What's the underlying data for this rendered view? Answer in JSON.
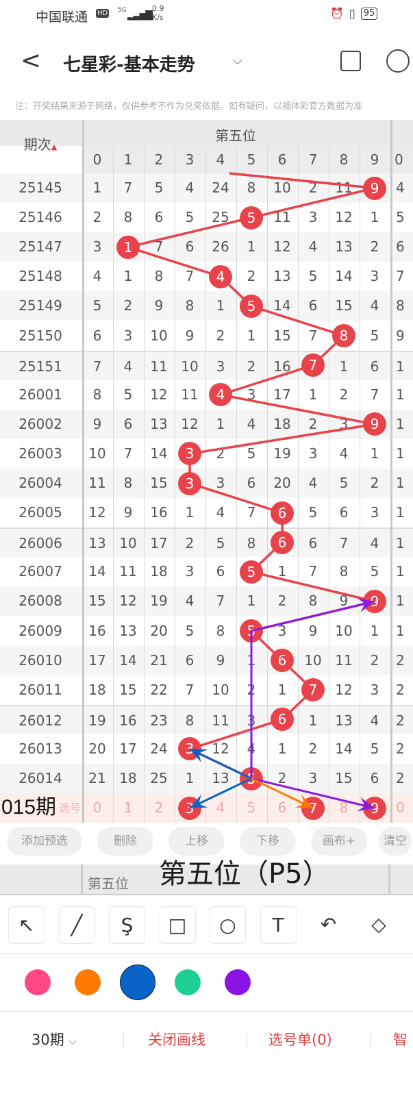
{
  "status_bar": {
    "carrier": "中国联通",
    "hd": "HD",
    "signal": "5G",
    "speed": "0.9",
    "speed_unit": "K/s",
    "battery": "95"
  },
  "header": {
    "title": "七星彩-基本走势",
    "back_icon": "chevron-left-icon",
    "dropdown_icon": "chevron-down-icon"
  },
  "note": "注：开奖结果来源于网络，仅供参考不作为兑奖依据。如有疑问，以福体彩官方数据为准",
  "table": {
    "period_header": "期次",
    "group_header": "第五位",
    "digits": [
      "0",
      "1",
      "2",
      "3",
      "4",
      "5",
      "6",
      "7",
      "8",
      "9"
    ],
    "next_col_header": "0",
    "ball_color": "#e8434a",
    "rows": [
      {
        "period": "25145",
        "cells": [
          1,
          7,
          5,
          4,
          24,
          8,
          10,
          2,
          11,
          null
        ],
        "hit": 9,
        "next": "4"
      },
      {
        "period": "25146",
        "cells": [
          2,
          8,
          6,
          5,
          25,
          null,
          11,
          3,
          12,
          1
        ],
        "hit": 5,
        "next": "5"
      },
      {
        "period": "25147",
        "cells": [
          3,
          null,
          7,
          6,
          26,
          1,
          12,
          4,
          13,
          2
        ],
        "hit": 1,
        "next": "6"
      },
      {
        "period": "25148",
        "cells": [
          4,
          1,
          8,
          7,
          null,
          2,
          13,
          5,
          14,
          3
        ],
        "hit": 4,
        "next": "7"
      },
      {
        "period": "25149",
        "cells": [
          5,
          2,
          9,
          8,
          1,
          null,
          14,
          6,
          15,
          4
        ],
        "hit": 5,
        "next": "8"
      },
      {
        "period": "25150",
        "cells": [
          6,
          3,
          10,
          9,
          2,
          1,
          15,
          7,
          null,
          5
        ],
        "hit": 8,
        "next": "9"
      },
      {
        "period": "25151",
        "cells": [
          7,
          4,
          11,
          10,
          3,
          2,
          16,
          null,
          1,
          6
        ],
        "hit": 7,
        "next": "1"
      },
      {
        "period": "26001",
        "cells": [
          8,
          5,
          12,
          11,
          null,
          3,
          17,
          1,
          2,
          7
        ],
        "hit": 4,
        "next": "1"
      },
      {
        "period": "26002",
        "cells": [
          9,
          6,
          13,
          12,
          1,
          4,
          18,
          2,
          3,
          null
        ],
        "hit": 9,
        "next": "1"
      },
      {
        "period": "26003",
        "cells": [
          10,
          7,
          14,
          null,
          2,
          5,
          19,
          3,
          4,
          1
        ],
        "hit": 3,
        "next": "1"
      },
      {
        "period": "26004",
        "cells": [
          11,
          8,
          15,
          null,
          3,
          6,
          20,
          4,
          5,
          2
        ],
        "hit": 3,
        "next": "1"
      },
      {
        "period": "26005",
        "cells": [
          12,
          9,
          16,
          1,
          4,
          7,
          null,
          5,
          6,
          3
        ],
        "hit": 6,
        "next": "1"
      },
      {
        "period": "26006",
        "cells": [
          13,
          10,
          17,
          2,
          5,
          8,
          null,
          6,
          7,
          4
        ],
        "hit": 6,
        "next": "1"
      },
      {
        "period": "26007",
        "cells": [
          14,
          11,
          18,
          3,
          6,
          null,
          1,
          7,
          8,
          5
        ],
        "hit": 5,
        "next": "1"
      },
      {
        "period": "26008",
        "cells": [
          15,
          12,
          19,
          4,
          7,
          1,
          2,
          8,
          9,
          null
        ],
        "hit": 9,
        "next": "1"
      },
      {
        "period": "26009",
        "cells": [
          16,
          13,
          20,
          5,
          8,
          null,
          3,
          9,
          10,
          1
        ],
        "hit": 5,
        "next": "1"
      },
      {
        "period": "26010",
        "cells": [
          17,
          14,
          21,
          6,
          9,
          1,
          null,
          10,
          11,
          2
        ],
        "hit": 6,
        "next": "2"
      },
      {
        "period": "26011",
        "cells": [
          18,
          15,
          22,
          7,
          10,
          2,
          1,
          null,
          12,
          3
        ],
        "hit": 7,
        "next": "2"
      },
      {
        "period": "26012",
        "cells": [
          19,
          16,
          23,
          8,
          11,
          3,
          null,
          1,
          13,
          4
        ],
        "hit": 6,
        "next": "2"
      },
      {
        "period": "26013",
        "cells": [
          20,
          17,
          24,
          null,
          12,
          4,
          1,
          2,
          14,
          5
        ],
        "hit": 3,
        "next": "2"
      },
      {
        "period": "26014",
        "cells": [
          21,
          18,
          25,
          1,
          13,
          null,
          2,
          3,
          15,
          6
        ],
        "hit": 5,
        "next": "2"
      }
    ],
    "selection_row": {
      "label": "015期",
      "faint_label": "选号",
      "selected": [
        3,
        7,
        9
      ],
      "next": "0"
    }
  },
  "annotations": {
    "overlay_text": "第五位（P5）",
    "arrows": [
      {
        "color": "#8a1ae0",
        "from": [
          "26009",
          5
        ],
        "to": [
          "26008",
          9
        ]
      },
      {
        "color": "#8a1ae0",
        "from": [
          "26009",
          5
        ],
        "to": [
          "26014",
          5
        ],
        "head": false
      },
      {
        "color": "#8a1ae0",
        "from": [
          "26014",
          5
        ],
        "to": [
          "015期",
          9
        ]
      },
      {
        "color": "#0a63c8",
        "from": [
          "26014",
          5
        ],
        "to": [
          "26013",
          3
        ]
      },
      {
        "color": "#0a63c8",
        "from": [
          "26014",
          5
        ],
        "to": [
          "015期",
          3
        ]
      },
      {
        "color": "#ff7a00",
        "from": [
          "26014",
          5
        ],
        "to": [
          "015期",
          7
        ]
      }
    ]
  },
  "actions": [
    "添加预选",
    "删除",
    "上移",
    "下移",
    "画布+",
    "清空"
  ],
  "footer_header": "第五位",
  "tools": [
    {
      "name": "arrow-tool",
      "icon": "↖"
    },
    {
      "name": "line-tool",
      "icon": "╱"
    },
    {
      "name": "curve-tool",
      "icon": "Ş"
    },
    {
      "name": "rect-tool",
      "icon": "□"
    },
    {
      "name": "circle-tool",
      "icon": "○"
    },
    {
      "name": "text-tool",
      "icon": "T"
    },
    {
      "name": "undo-tool",
      "icon": "↶"
    },
    {
      "name": "eraser-tool",
      "icon": "◇"
    }
  ],
  "colors": [
    "#ff4785",
    "#ff7a00",
    "#0a63c8",
    "#1ccf93",
    "#8a14e6"
  ],
  "selected_color": "#0a63c8",
  "bottom": {
    "periods": "30期",
    "close_draw": "关闭画线",
    "pick_list": "选号单(0)",
    "smart": "智"
  }
}
